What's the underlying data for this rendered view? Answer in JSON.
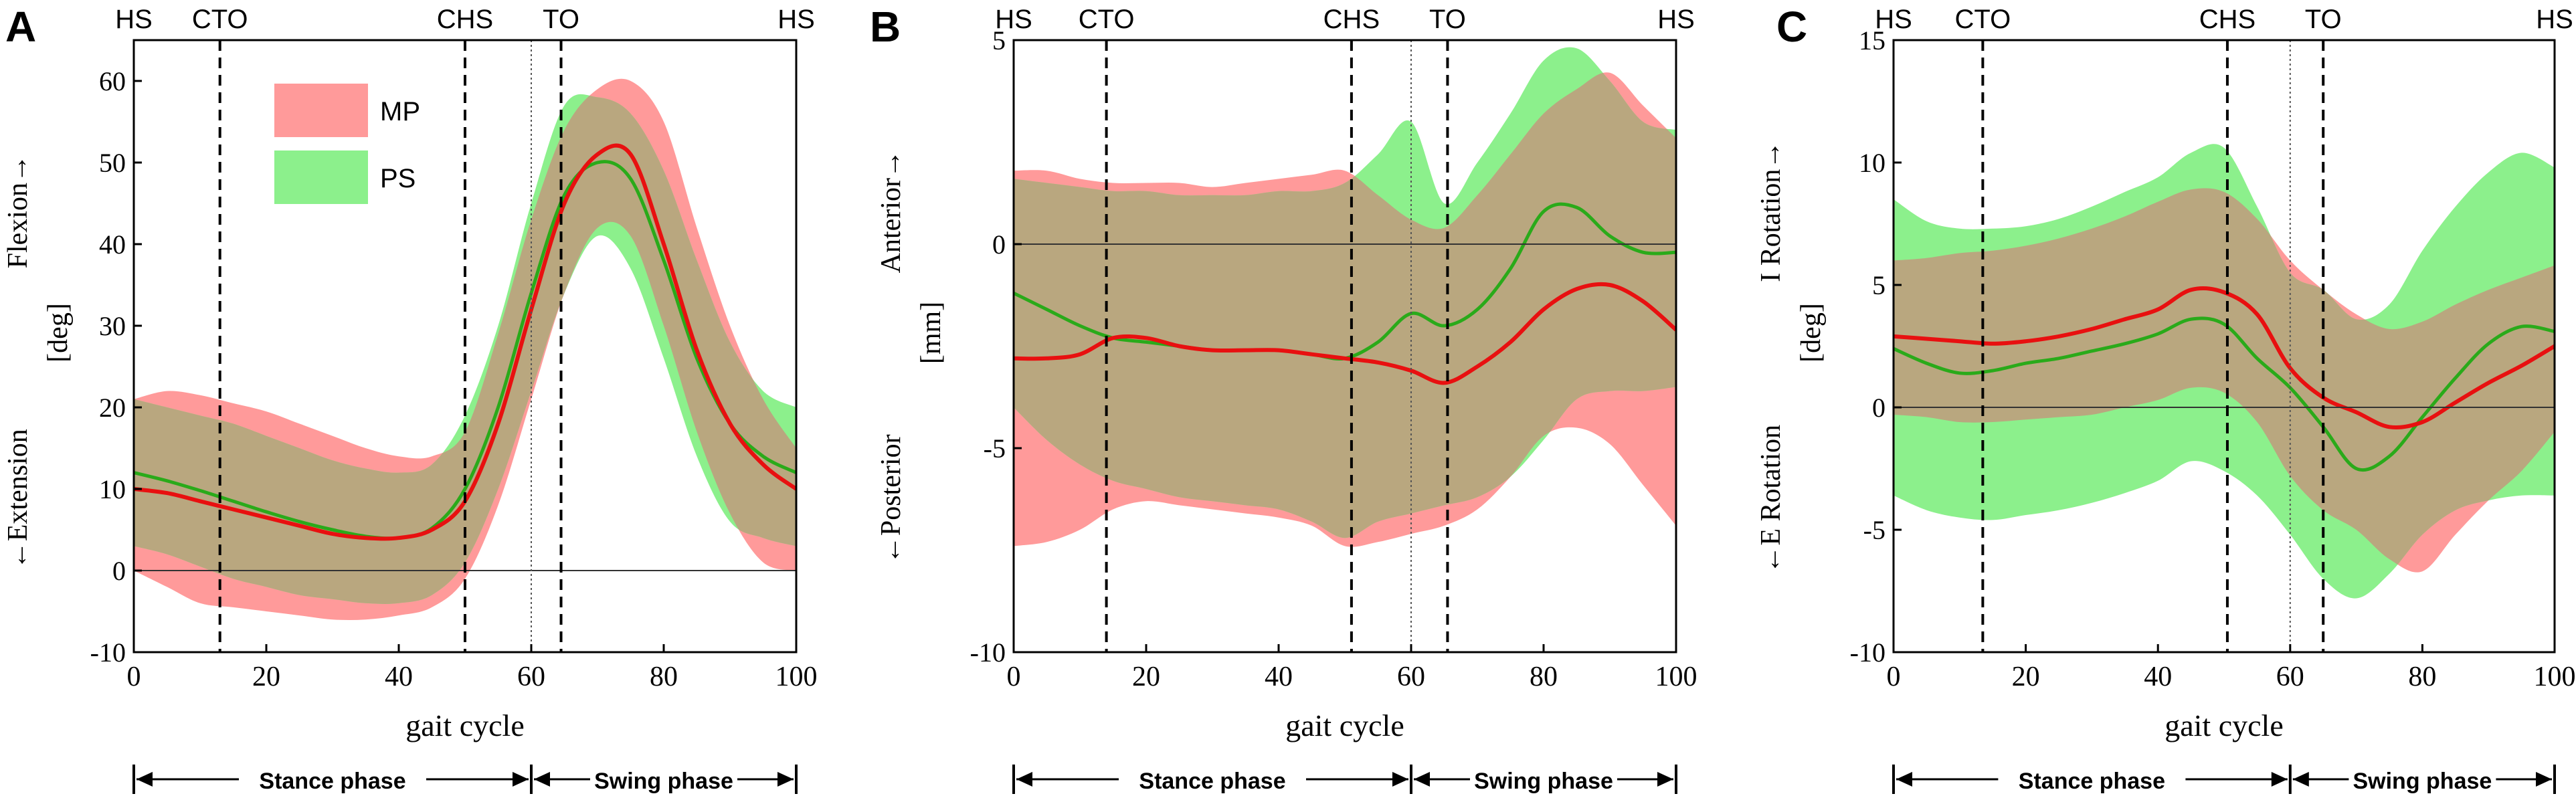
{
  "figure": {
    "phase_labels": {
      "stance": "Stance phase",
      "swing": "Swing phase"
    },
    "colors": {
      "mp_band": "#ff9a9a",
      "ps_band": "#8cf08c",
      "overlap_band": "#b9a77f",
      "mp_line": "#e81010",
      "ps_line": "#2aaa1a",
      "axis": "#000000",
      "zero_line": "#333333"
    }
  },
  "chart_data": [
    {
      "type": "line",
      "panel_letter": "A",
      "xlabel": "gait cycle",
      "ylabel_left": "←Extension",
      "ylabel_right": "Flexion→",
      "ylabel_unit": "[deg]",
      "xlim": [
        0,
        100
      ],
      "ylim": [
        -10,
        65
      ],
      "xticks": [
        0,
        20,
        40,
        60,
        80,
        100
      ],
      "yticks": [
        -10,
        0,
        10,
        20,
        30,
        40,
        50,
        60
      ],
      "ytick_labels": [
        "-10",
        "0",
        "10",
        "20",
        "30",
        "40",
        "50",
        "60"
      ],
      "events": [
        {
          "label": "HS",
          "x": 0,
          "line": "none"
        },
        {
          "label": "CTO",
          "x": 13,
          "line": "dashed"
        },
        {
          "label": "CHS",
          "x": 50,
          "line": "dashed"
        },
        {
          "label": "",
          "x": 60,
          "line": "dotted"
        },
        {
          "label": "TO",
          "x": 64.5,
          "line": "dashed"
        },
        {
          "label": "HS",
          "x": 100,
          "line": "none"
        }
      ],
      "legend": {
        "position": "top-left",
        "entries": [
          {
            "name": "MP"
          },
          {
            "name": "PS"
          }
        ]
      },
      "x": [
        0,
        5,
        10,
        15,
        20,
        25,
        30,
        35,
        40,
        45,
        50,
        55,
        60,
        65,
        70,
        75,
        80,
        85,
        90,
        95,
        100
      ],
      "series": [
        {
          "name": "MP",
          "mean": [
            10,
            9.5,
            8.5,
            7.5,
            6.5,
            5.5,
            4.5,
            4.0,
            4.0,
            5.0,
            8.5,
            18,
            32,
            45,
            51,
            51,
            40,
            27,
            18,
            13,
            10
          ],
          "upper": [
            21,
            22,
            21.5,
            20.5,
            19.5,
            18,
            16.5,
            15,
            14,
            14,
            17,
            29,
            43,
            54,
            59,
            60,
            55,
            42,
            30,
            21,
            15
          ],
          "lower": [
            0,
            -2,
            -4,
            -4.5,
            -5,
            -5.5,
            -6,
            -6,
            -5.5,
            -4.5,
            -1,
            8,
            21,
            34,
            42,
            41,
            30,
            17,
            7,
            1,
            0
          ]
        },
        {
          "name": "PS",
          "mean": [
            12,
            11,
            9.8,
            8.5,
            7.2,
            6.0,
            5.0,
            4.2,
            4.0,
            5.2,
            10,
            20,
            34,
            46,
            50,
            48,
            38,
            26,
            18,
            14,
            12
          ],
          "upper": [
            21,
            20,
            19,
            18,
            16.5,
            15,
            13.5,
            12.5,
            12,
            13,
            19,
            30,
            45,
            57,
            58,
            56,
            49,
            38,
            28,
            22,
            20
          ],
          "lower": [
            3,
            2,
            0.5,
            -1,
            -2,
            -3,
            -3.5,
            -4,
            -4,
            -3,
            1,
            10,
            22,
            34,
            41,
            37,
            26,
            14,
            6,
            4,
            3
          ]
        }
      ]
    },
    {
      "type": "line",
      "panel_letter": "B",
      "xlabel": "gait cycle",
      "ylabel_left": "←Posterior",
      "ylabel_right": "Anterior→",
      "ylabel_unit": "[mm]",
      "xlim": [
        0,
        100
      ],
      "ylim": [
        -10,
        5
      ],
      "xticks": [
        0,
        20,
        40,
        60,
        80,
        100
      ],
      "yticks": [
        -10,
        -5,
        0,
        5
      ],
      "ytick_labels": [
        "-10",
        "-5",
        "0",
        "5"
      ],
      "events": [
        {
          "label": "HS",
          "x": 0,
          "line": "none"
        },
        {
          "label": "CTO",
          "x": 14,
          "line": "dashed"
        },
        {
          "label": "CHS",
          "x": 51,
          "line": "dashed"
        },
        {
          "label": "",
          "x": 60,
          "line": "dotted"
        },
        {
          "label": "TO",
          "x": 65.5,
          "line": "dashed"
        },
        {
          "label": "HS",
          "x": 100,
          "line": "none"
        }
      ],
      "x": [
        0,
        5,
        10,
        15,
        20,
        25,
        30,
        35,
        40,
        45,
        50,
        55,
        60,
        65,
        70,
        75,
        80,
        85,
        90,
        95,
        100
      ],
      "series": [
        {
          "name": "MP",
          "mean": [
            -2.8,
            -2.8,
            -2.7,
            -2.3,
            -2.3,
            -2.5,
            -2.6,
            -2.6,
            -2.6,
            -2.7,
            -2.8,
            -2.9,
            -3.1,
            -3.4,
            -3.0,
            -2.4,
            -1.6,
            -1.1,
            -1.0,
            -1.4,
            -2.1
          ],
          "upper": [
            1.8,
            1.8,
            1.6,
            1.5,
            1.5,
            1.5,
            1.4,
            1.5,
            1.6,
            1.7,
            1.8,
            1.2,
            0.6,
            0.4,
            1.2,
            2.2,
            3.2,
            3.8,
            4.2,
            3.4,
            2.6
          ],
          "lower": [
            -7.4,
            -7.3,
            -7.0,
            -6.5,
            -6.3,
            -6.4,
            -6.5,
            -6.6,
            -6.7,
            -6.9,
            -7.4,
            -7.3,
            -7.1,
            -6.9,
            -6.5,
            -5.7,
            -4.7,
            -4.5,
            -4.9,
            -5.9,
            -6.9
          ]
        },
        {
          "name": "PS",
          "mean": [
            -1.2,
            -1.6,
            -2.0,
            -2.3,
            -2.4,
            -2.5,
            -2.6,
            -2.6,
            -2.6,
            -2.7,
            -2.8,
            -2.4,
            -1.7,
            -2.0,
            -1.6,
            -0.6,
            0.8,
            0.9,
            0.2,
            -0.2,
            -0.2
          ],
          "upper": [
            1.6,
            1.5,
            1.4,
            1.3,
            1.3,
            1.2,
            1.2,
            1.2,
            1.3,
            1.3,
            1.5,
            2.2,
            3.0,
            1.0,
            2.0,
            3.2,
            4.5,
            4.8,
            4.0,
            3.0,
            2.8
          ],
          "lower": [
            -4.0,
            -4.8,
            -5.4,
            -5.8,
            -6.0,
            -6.2,
            -6.3,
            -6.4,
            -6.5,
            -6.8,
            -7.2,
            -6.8,
            -6.6,
            -6.4,
            -6.2,
            -5.7,
            -4.8,
            -3.8,
            -3.6,
            -3.6,
            -3.5
          ]
        }
      ]
    },
    {
      "type": "line",
      "panel_letter": "C",
      "xlabel": "gait cycle",
      "ylabel_left": "←E Rotation",
      "ylabel_right": "I Rotation→",
      "ylabel_unit": "[deg]",
      "xlim": [
        0,
        100
      ],
      "ylim": [
        -10,
        15
      ],
      "xticks": [
        0,
        20,
        40,
        60,
        80,
        100
      ],
      "yticks": [
        -10,
        -5,
        0,
        5,
        10,
        15
      ],
      "ytick_labels": [
        "-10",
        "-5",
        "0",
        "5",
        "10",
        "15"
      ],
      "events": [
        {
          "label": "HS",
          "x": 0,
          "line": "none"
        },
        {
          "label": "CTO",
          "x": 13.5,
          "line": "dashed"
        },
        {
          "label": "CHS",
          "x": 50.5,
          "line": "dashed"
        },
        {
          "label": "",
          "x": 60,
          "line": "dotted"
        },
        {
          "label": "TO",
          "x": 65,
          "line": "dashed"
        },
        {
          "label": "HS",
          "x": 100,
          "line": "none"
        }
      ],
      "x": [
        0,
        5,
        10,
        15,
        20,
        25,
        30,
        35,
        40,
        45,
        50,
        55,
        60,
        65,
        70,
        75,
        80,
        85,
        90,
        95,
        100
      ],
      "series": [
        {
          "name": "MP",
          "mean": [
            2.9,
            2.8,
            2.7,
            2.6,
            2.7,
            2.9,
            3.2,
            3.6,
            4.0,
            4.8,
            4.7,
            3.8,
            1.6,
            0.4,
            -0.2,
            -0.8,
            -0.6,
            0.2,
            1.0,
            1.7,
            2.5
          ],
          "upper": [
            6.0,
            6.1,
            6.3,
            6.4,
            6.6,
            6.9,
            7.3,
            7.8,
            8.4,
            8.9,
            8.8,
            7.7,
            6.0,
            4.8,
            3.8,
            3.2,
            3.5,
            4.2,
            4.8,
            5.3,
            5.8
          ],
          "lower": [
            -0.3,
            -0.4,
            -0.6,
            -0.6,
            -0.5,
            -0.4,
            -0.3,
            0.0,
            0.3,
            0.8,
            0.6,
            -0.6,
            -2.8,
            -4.2,
            -5.0,
            -6.2,
            -6.7,
            -5.2,
            -3.8,
            -2.6,
            -1.0
          ]
        },
        {
          "name": "PS",
          "mean": [
            2.4,
            1.8,
            1.4,
            1.5,
            1.8,
            2.0,
            2.3,
            2.6,
            3.0,
            3.6,
            3.4,
            2.0,
            0.8,
            -0.8,
            -2.5,
            -2.0,
            -0.4,
            1.2,
            2.6,
            3.3,
            3.1
          ],
          "upper": [
            8.5,
            7.6,
            7.3,
            7.3,
            7.4,
            7.7,
            8.2,
            8.8,
            9.4,
            10.4,
            10.6,
            8.2,
            5.5,
            4.8,
            3.6,
            4.2,
            6.4,
            8.2,
            9.6,
            10.4,
            9.8
          ],
          "lower": [
            -3.6,
            -4.2,
            -4.5,
            -4.6,
            -4.4,
            -4.2,
            -3.9,
            -3.5,
            -3.0,
            -2.2,
            -2.6,
            -3.6,
            -5.2,
            -7.0,
            -7.8,
            -6.8,
            -5.2,
            -4.2,
            -3.8,
            -3.6,
            -3.6
          ]
        }
      ]
    }
  ]
}
